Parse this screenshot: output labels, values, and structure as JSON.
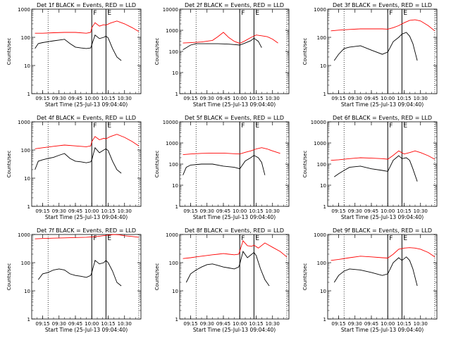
{
  "chart_data": {
    "type": "line",
    "layout": "3x3 grid of panels",
    "scale": "log",
    "y_ticks": [
      1,
      10,
      100,
      1000,
      10000
    ],
    "x_tick_labels": [
      "09:15",
      "09:30",
      "09:45",
      "10:00",
      "10:15",
      "10:30"
    ],
    "x_unit": "minutes from 09:05",
    "x_ticks": [
      10,
      25,
      40,
      55,
      70,
      85
    ],
    "xlim": [
      0,
      100
    ],
    "xlabel": "Start Time (25-Jul-13 09:04:40)",
    "ylabel": "Counts/sec",
    "colors": {
      "events": "#000000",
      "lld": "#ff0000"
    },
    "marker_labels": [
      "F",
      "E"
    ],
    "panels": [
      {
        "title": "Det 1f BLACK = Events, RED = LLD",
        "ylim": [
          1,
          1000
        ],
        "vlines_dotted": [
          15,
          98
        ],
        "vlines_solid": [
          55,
          68
        ],
        "events": {
          "x": [
            3,
            6,
            10,
            15,
            20,
            25,
            30,
            35,
            40,
            45,
            50,
            54,
            55,
            58,
            62,
            66,
            68,
            70,
            74,
            78,
            82
          ],
          "y": [
            40,
            60,
            65,
            70,
            75,
            80,
            85,
            60,
            45,
            42,
            40,
            42,
            55,
            120,
            90,
            100,
            110,
            95,
            40,
            20,
            15
          ]
        },
        "lld": {
          "x": [
            3,
            10,
            20,
            30,
            40,
            50,
            54,
            55,
            58,
            62,
            66,
            68,
            72,
            78,
            85,
            92,
            98
          ],
          "y": [
            140,
            140,
            145,
            150,
            150,
            140,
            150,
            220,
            330,
            250,
            280,
            270,
            320,
            380,
            300,
            220,
            160
          ]
        }
      },
      {
        "title": "Det 2f BLACK = Events, RED = LLD",
        "ylim": [
          1,
          10000
        ],
        "vlines_dotted": [
          15,
          98
        ],
        "vlines_solid": [
          55,
          68
        ],
        "events": {
          "x": [
            3,
            10,
            15,
            25,
            35,
            45,
            50,
            55,
            60,
            65,
            68,
            72,
            75
          ],
          "y": [
            120,
            200,
            230,
            230,
            230,
            220,
            210,
            200,
            250,
            320,
            420,
            300,
            150
          ]
        },
        "lld": {
          "x": [
            3,
            10,
            20,
            30,
            35,
            40,
            45,
            50,
            55,
            60,
            65,
            70,
            75,
            80,
            85,
            90
          ],
          "y": [
            250,
            260,
            280,
            330,
            500,
            800,
            450,
            300,
            240,
            320,
            450,
            600,
            550,
            500,
            380,
            250
          ]
        }
      },
      {
        "title": "Det 3f BLACK = Events, RED = LLD",
        "ylim": [
          1,
          1000
        ],
        "vlines_dotted": [
          15,
          98
        ],
        "vlines_solid": [
          55,
          68
        ],
        "events": {
          "x": [
            6,
            10,
            15,
            20,
            30,
            40,
            50,
            55,
            60,
            65,
            68,
            72,
            75,
            78,
            82
          ],
          "y": [
            15,
            25,
            40,
            45,
            50,
            35,
            25,
            30,
            70,
            100,
            130,
            150,
            110,
            60,
            15
          ]
        },
        "lld": {
          "x": [
            3,
            10,
            20,
            30,
            40,
            50,
            55,
            60,
            65,
            70,
            75,
            80,
            85,
            92,
            98
          ],
          "y": [
            170,
            180,
            190,
            200,
            200,
            200,
            195,
            220,
            260,
            330,
            400,
            420,
            380,
            260,
            170
          ]
        }
      },
      {
        "title": "Det 4f BLACK = Events, RED = LLD",
        "ylim": [
          1,
          1000
        ],
        "vlines_dotted": [
          15,
          98
        ],
        "vlines_solid": [
          55,
          68
        ],
        "events": {
          "x": [
            3,
            6,
            10,
            15,
            20,
            25,
            30,
            35,
            40,
            45,
            50,
            54,
            55,
            58,
            62,
            66,
            68,
            70,
            74,
            78,
            82
          ],
          "y": [
            20,
            40,
            45,
            50,
            55,
            65,
            75,
            50,
            40,
            38,
            35,
            38,
            45,
            120,
            80,
            100,
            110,
            95,
            40,
            20,
            15
          ]
        },
        "lld": {
          "x": [
            3,
            10,
            20,
            30,
            40,
            50,
            54,
            55,
            58,
            62,
            66,
            68,
            72,
            78,
            85,
            92,
            98
          ],
          "y": [
            110,
            120,
            135,
            150,
            140,
            130,
            140,
            200,
            300,
            230,
            260,
            250,
            300,
            360,
            280,
            200,
            140
          ]
        }
      },
      {
        "title": "Det 5f BLACK = Events, RED = LLD",
        "ylim": [
          1,
          10000
        ],
        "vlines_dotted": [
          15,
          98
        ],
        "vlines_solid": [
          55,
          68
        ],
        "events": {
          "x": [
            3,
            6,
            10,
            20,
            30,
            40,
            50,
            55,
            60,
            65,
            68,
            72,
            75,
            78
          ],
          "y": [
            30,
            70,
            90,
            100,
            100,
            80,
            70,
            60,
            140,
            200,
            260,
            200,
            120,
            30
          ]
        },
        "lld": {
          "x": [
            3,
            10,
            20,
            30,
            40,
            50,
            55,
            60,
            65,
            70,
            75,
            80,
            85,
            92
          ],
          "y": [
            280,
            300,
            320,
            330,
            330,
            310,
            300,
            360,
            420,
            520,
            600,
            520,
            420,
            320
          ]
        }
      },
      {
        "title": "Det 6f BLACK = Events, RED = LLD",
        "ylim": [
          1,
          10000
        ],
        "vlines_dotted": [
          15,
          98
        ],
        "vlines_solid": [
          55,
          68
        ],
        "events": {
          "x": [
            6,
            10,
            15,
            20,
            30,
            40,
            50,
            55,
            60,
            65,
            68,
            72,
            75,
            78,
            82
          ],
          "y": [
            25,
            35,
            50,
            70,
            80,
            60,
            50,
            45,
            150,
            250,
            180,
            200,
            150,
            60,
            15
          ]
        },
        "lld": {
          "x": [
            3,
            10,
            20,
            30,
            40,
            50,
            55,
            60,
            65,
            70,
            75,
            80,
            85,
            92,
            98
          ],
          "y": [
            150,
            160,
            180,
            200,
            190,
            180,
            170,
            260,
            420,
            300,
            350,
            420,
            350,
            250,
            170
          ]
        }
      },
      {
        "title": "Det 7f BLACK = Events, RED = LLD",
        "ylim": [
          1,
          1000
        ],
        "vlines_dotted": [
          15,
          98
        ],
        "vlines_solid": [
          55,
          68
        ],
        "events": {
          "x": [
            6,
            10,
            15,
            20,
            25,
            30,
            35,
            40,
            45,
            50,
            54,
            55,
            58,
            62,
            66,
            68,
            70,
            74,
            78,
            82
          ],
          "y": [
            25,
            40,
            45,
            55,
            60,
            55,
            40,
            35,
            33,
            30,
            35,
            45,
            120,
            90,
            100,
            120,
            100,
            50,
            20,
            15
          ]
        },
        "lld": {
          "x": [
            3,
            10,
            20,
            30,
            40,
            50,
            55,
            60,
            65,
            70,
            75,
            80,
            85,
            92,
            98
          ],
          "y": [
            700,
            720,
            740,
            760,
            780,
            800,
            820,
            850,
            900,
            950,
            1000,
            980,
            900,
            850,
            800
          ]
        }
      },
      {
        "title": "Det 8f BLACK = Events, RED = LLD",
        "ylim": [
          1,
          1000
        ],
        "vlines_dotted": [
          15,
          98
        ],
        "vlines_solid": [
          55,
          68
        ],
        "events": {
          "x": [
            6,
            10,
            15,
            20,
            25,
            30,
            35,
            40,
            45,
            50,
            54,
            55,
            58,
            62,
            66,
            68,
            70,
            74,
            78,
            82
          ],
          "y": [
            20,
            40,
            55,
            70,
            85,
            90,
            80,
            70,
            65,
            60,
            70,
            90,
            250,
            150,
            200,
            230,
            180,
            60,
            25,
            15
          ]
        },
        "lld": {
          "x": [
            3,
            10,
            15,
            20,
            25,
            30,
            35,
            40,
            45,
            50,
            54,
            55,
            58,
            62,
            66,
            68,
            72,
            78,
            85,
            92,
            98
          ],
          "y": [
            140,
            150,
            160,
            170,
            180,
            190,
            200,
            210,
            200,
            190,
            200,
            260,
            600,
            400,
            380,
            420,
            330,
            500,
            350,
            250,
            160
          ]
        }
      },
      {
        "title": "Det 9f BLACK = Events, RED = LLD",
        "ylim": [
          1,
          1000
        ],
        "vlines_dotted": [
          15,
          98
        ],
        "vlines_solid": [
          55,
          68
        ],
        "events": {
          "x": [
            6,
            10,
            15,
            20,
            30,
            40,
            50,
            55,
            60,
            65,
            68,
            72,
            75,
            78,
            82
          ],
          "y": [
            20,
            35,
            50,
            60,
            55,
            45,
            35,
            40,
            100,
            150,
            120,
            160,
            120,
            60,
            15
          ]
        },
        "lld": {
          "x": [
            3,
            10,
            20,
            30,
            40,
            50,
            55,
            60,
            65,
            70,
            75,
            80,
            85,
            92,
            98
          ],
          "y": [
            120,
            130,
            150,
            170,
            160,
            150,
            145,
            200,
            300,
            330,
            340,
            330,
            300,
            230,
            160
          ]
        }
      }
    ]
  }
}
